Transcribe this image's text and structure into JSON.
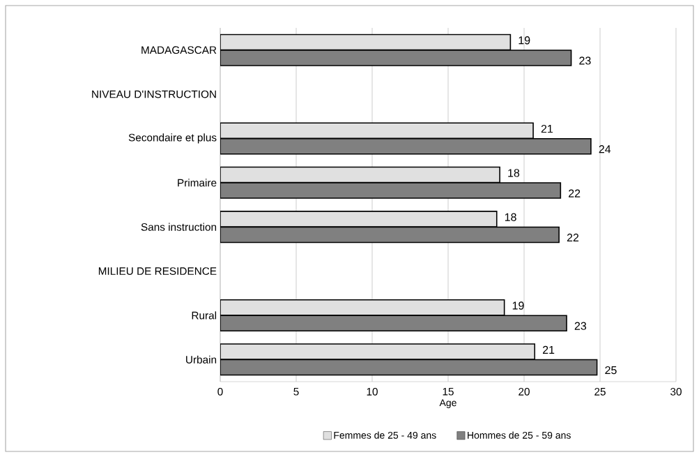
{
  "chart_data": {
    "type": "bar",
    "orientation": "horizontal",
    "xlabel": "Age",
    "categories": [
      "MADAGASCAR",
      "NIVEAU D'INSTRUCTION",
      "Secondaire et plus",
      "Primaire",
      "Sans instruction",
      "MILIEU DE RESIDENCE",
      "Rural",
      "Urbain"
    ],
    "series": [
      {
        "name": "Femmes de 25 - 49 ans",
        "color": "#e0e0e0",
        "values": [
          19.1,
          null,
          20.6,
          18.4,
          18.2,
          null,
          18.7,
          20.7
        ],
        "value_labels": [
          "19",
          null,
          "21",
          "18",
          "18",
          null,
          "19",
          "21"
        ]
      },
      {
        "name": "Hommes de 25 - 59 ans",
        "color": "#808080",
        "values": [
          23.1,
          null,
          24.4,
          22.4,
          22.3,
          null,
          22.8,
          24.8
        ],
        "value_labels": [
          "23",
          null,
          "24",
          "22",
          "22",
          null,
          "23",
          "25"
        ]
      }
    ],
    "xlim": [
      0,
      30
    ],
    "xticks": [
      0,
      5,
      10,
      15,
      20,
      25,
      30
    ],
    "grid": "x",
    "legend": "bottom"
  }
}
